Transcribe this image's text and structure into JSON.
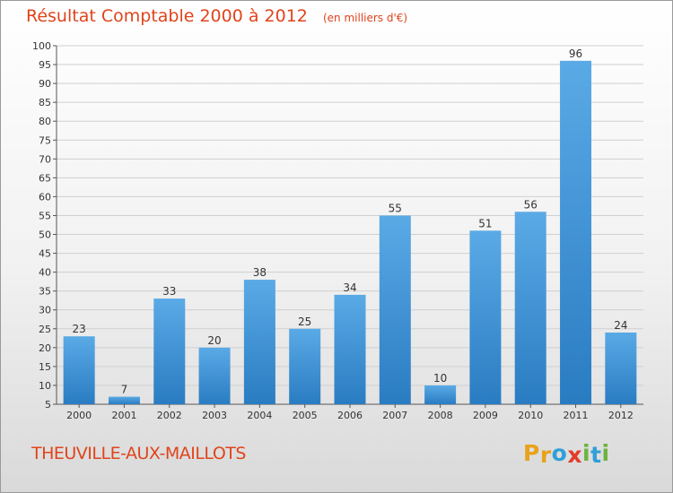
{
  "title": "Résultat Comptable 2000 à 2012",
  "subtitle": "(en milliers d'€)",
  "commune": "THEUVILLE-AUX-MAILLOTS",
  "logo": {
    "letters": [
      "P",
      "r",
      "o",
      "x",
      "i",
      "t",
      "i"
    ],
    "colors": [
      "#e8a21b",
      "#e8a21b",
      "#2f9fd8",
      "#e23c2a",
      "#6cb33e",
      "#2f9fd8",
      "#6cb33e"
    ]
  },
  "colors": {
    "bar_top": "#5aaae6",
    "bar_bottom": "#2a7cc2",
    "title": "#e0441b"
  },
  "chart_data": {
    "type": "bar",
    "categories": [
      "2000",
      "2001",
      "2002",
      "2003",
      "2004",
      "2005",
      "2006",
      "2007",
      "2008",
      "2009",
      "2010",
      "2011",
      "2012"
    ],
    "values": [
      23,
      7,
      33,
      20,
      38,
      25,
      34,
      55,
      10,
      51,
      56,
      96,
      24
    ],
    "data_labels": [
      "23",
      "7",
      "33",
      "20",
      "38",
      "25",
      "34",
      "55",
      "10",
      "51",
      "56",
      "96",
      "24"
    ],
    "yticks": [
      "5",
      "10",
      "15",
      "20",
      "25",
      "30",
      "35",
      "40",
      "45",
      "50",
      "55",
      "60",
      "65",
      "70",
      "75",
      "80",
      "85",
      "90",
      "95",
      "100"
    ],
    "ylim": [
      5,
      100
    ],
    "grid": true,
    "legend": "none"
  }
}
